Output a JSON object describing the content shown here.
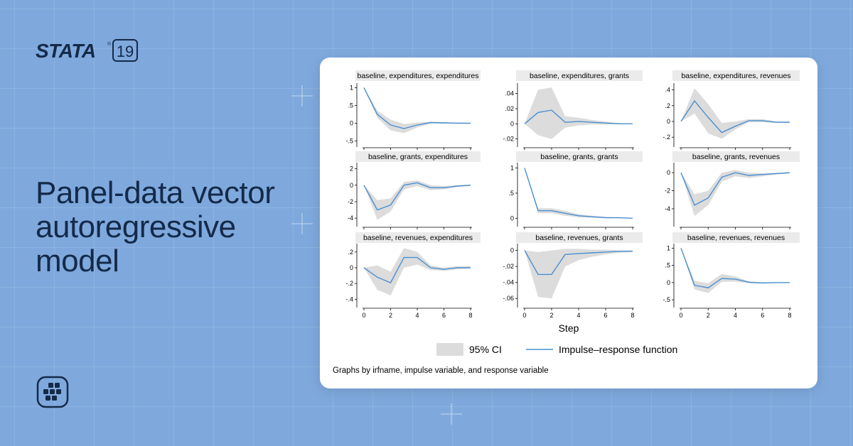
{
  "brand": {
    "logo_text": "STATA",
    "version": "19",
    "registered": "®"
  },
  "headline": [
    "Panel-data vector",
    "autoregressive",
    "model"
  ],
  "colors": {
    "background": "#7fa9dd",
    "headline": "#142a49",
    "ci_band": "#dcdcdc",
    "irf_line": "#4a90d0",
    "panel_title_bg": "#ebebeb"
  },
  "icons": {
    "app": "grid-app-icon",
    "logo": "stata-logo"
  },
  "chart_data": {
    "type": "line",
    "x": [
      0,
      1,
      2,
      3,
      4,
      5,
      6,
      7,
      8
    ],
    "xticks": [
      "0",
      "2",
      "4",
      "6",
      "8"
    ],
    "xlabel": "Step",
    "legend": {
      "placement": "bottom",
      "entries": [
        "95% CI",
        "Impulse–response function"
      ]
    },
    "note": "Graphs by irfname, impulse variable, and response variable",
    "panels": [
      {
        "title": "baseline, expenditures, expenditures",
        "ylim": [
          -0.55,
          1.05
        ],
        "yticks": [
          -0.5,
          0,
          0.5,
          1
        ],
        "ytick_labels": [
          "-.5",
          "0",
          ".5",
          "1"
        ],
        "irf": [
          1,
          0.25,
          -0.05,
          -0.15,
          -0.05,
          0.02,
          0.01,
          0,
          0
        ],
        "lower": [
          1,
          0.15,
          -0.2,
          -0.28,
          -0.12,
          -0.01,
          -0.01,
          -0.01,
          -0.01
        ],
        "upper": [
          1,
          0.35,
          0.1,
          -0.02,
          0.02,
          0.04,
          0.03,
          0.02,
          0.01
        ]
      },
      {
        "title": "baseline, expenditures, grants",
        "ylim": [
          -0.025,
          0.05
        ],
        "yticks": [
          -0.02,
          0,
          0.02,
          0.04
        ],
        "ytick_labels": [
          "-.02",
          "0",
          ".02",
          ".04"
        ],
        "irf": [
          0,
          0.015,
          0.018,
          0.002,
          0.003,
          0.002,
          0.001,
          0,
          0
        ],
        "lower": [
          0,
          -0.015,
          -0.02,
          -0.005,
          -0.002,
          -0.001,
          -0.001,
          0,
          0
        ],
        "upper": [
          0,
          0.045,
          0.048,
          0.01,
          0.008,
          0.005,
          0.003,
          0.001,
          0
        ]
      },
      {
        "title": "baseline, expenditures, revenues",
        "ylim": [
          -0.27,
          0.45
        ],
        "yticks": [
          -0.2,
          0,
          0.2,
          0.4
        ],
        "ytick_labels": [
          "-.2",
          "0",
          ".2",
          ".4"
        ],
        "irf": [
          0,
          0.26,
          0.05,
          -0.14,
          -0.06,
          0.01,
          0.01,
          -0.01,
          -0.01
        ],
        "lower": [
          0,
          0.1,
          -0.15,
          -0.22,
          -0.1,
          -0.01,
          -0.01,
          -0.02,
          -0.02
        ],
        "upper": [
          0,
          0.42,
          0.22,
          -0.02,
          0,
          0.03,
          0.03,
          0,
          0
        ]
      },
      {
        "title": "baseline, grants, expenditures",
        "ylim": [
          -4.5,
          2.4
        ],
        "yticks": [
          -4,
          -2,
          0,
          2
        ],
        "ytick_labels": [
          "-4",
          "-2",
          "0",
          "2"
        ],
        "irf": [
          0,
          -3,
          -2.4,
          0,
          0.3,
          -0.3,
          -0.3,
          -0.1,
          0
        ],
        "lower": [
          0,
          -4.2,
          -3.2,
          -0.5,
          -0.1,
          -0.6,
          -0.5,
          -0.2,
          -0.1
        ],
        "upper": [
          0,
          -1.8,
          -1.6,
          0.4,
          0.6,
          0,
          -0.1,
          0,
          0.1
        ]
      },
      {
        "title": "baseline, grants, grants",
        "ylim": [
          -0.08,
          1.05
        ],
        "yticks": [
          0,
          0.5,
          1
        ],
        "ytick_labels": [
          "0",
          ".5",
          "1"
        ],
        "irf": [
          1,
          0.15,
          0.15,
          0.1,
          0.05,
          0.03,
          0.01,
          0.01,
          0
        ],
        "lower": [
          1,
          0.1,
          0.1,
          0.05,
          0.02,
          0.01,
          0,
          0,
          0
        ],
        "upper": [
          1,
          0.2,
          0.2,
          0.15,
          0.08,
          0.05,
          0.03,
          0.02,
          0.01
        ]
      },
      {
        "title": "baseline, grants, revenues",
        "ylim": [
          -5.5,
          0.8
        ],
        "yticks": [
          -4,
          -2,
          0
        ],
        "ytick_labels": [
          "-4",
          "-2",
          "0"
        ],
        "irf": [
          0,
          -3.6,
          -2.8,
          -0.5,
          0,
          -0.3,
          -0.2,
          -0.1,
          0
        ],
        "lower": [
          0,
          -4.8,
          -3.6,
          -1,
          -0.4,
          -0.6,
          -0.4,
          -0.2,
          -0.1
        ],
        "upper": [
          0,
          -2.4,
          -2,
          0,
          0.3,
          0,
          -0.05,
          0,
          0.05
        ]
      },
      {
        "title": "baseline, revenues, expenditures",
        "ylim": [
          -0.45,
          0.27
        ],
        "yticks": [
          -0.4,
          -0.2,
          0,
          0.2
        ],
        "ytick_labels": [
          "-.4",
          "-.2",
          "0",
          ".2"
        ],
        "irf": [
          0,
          -0.12,
          -0.19,
          0.13,
          0.13,
          0,
          -0.02,
          0,
          0
        ],
        "lower": [
          0,
          -0.28,
          -0.35,
          0,
          0.04,
          -0.03,
          -0.04,
          -0.02,
          -0.01
        ],
        "upper": [
          0,
          0.03,
          -0.05,
          0.25,
          0.2,
          0.03,
          0,
          0.02,
          0.02
        ]
      },
      {
        "title": "baseline, revenues, grants",
        "ylim": [
          -0.066,
          0.005
        ],
        "yticks": [
          -0.06,
          -0.04,
          -0.02,
          0
        ],
        "ytick_labels": [
          "-.06",
          "-.04",
          "-.02",
          "0"
        ],
        "irf": [
          0,
          -0.03,
          -0.03,
          -0.005,
          -0.004,
          -0.003,
          -0.002,
          -0.001,
          -0.001
        ],
        "lower": [
          0,
          -0.058,
          -0.06,
          -0.02,
          -0.012,
          -0.008,
          -0.005,
          -0.003,
          -0.002
        ],
        "upper": [
          0,
          -0.002,
          0,
          0.002,
          0.002,
          0.001,
          0.001,
          0,
          0
        ]
      },
      {
        "title": "baseline, revenues, revenues",
        "ylim": [
          -0.6,
          1.05
        ],
        "yticks": [
          -0.5,
          0,
          0.5,
          1
        ],
        "ytick_labels": [
          "-.5",
          "0",
          ".5",
          "1"
        ],
        "irf": [
          1,
          -0.08,
          -0.15,
          0.12,
          0.1,
          0.01,
          -0.01,
          0,
          0
        ],
        "lower": [
          1,
          -0.2,
          -0.3,
          0.02,
          0.03,
          -0.02,
          -0.03,
          -0.01,
          -0.01
        ],
        "upper": [
          1,
          0.05,
          -0.02,
          0.25,
          0.18,
          0.04,
          0.01,
          0.01,
          0.01
        ]
      }
    ]
  }
}
